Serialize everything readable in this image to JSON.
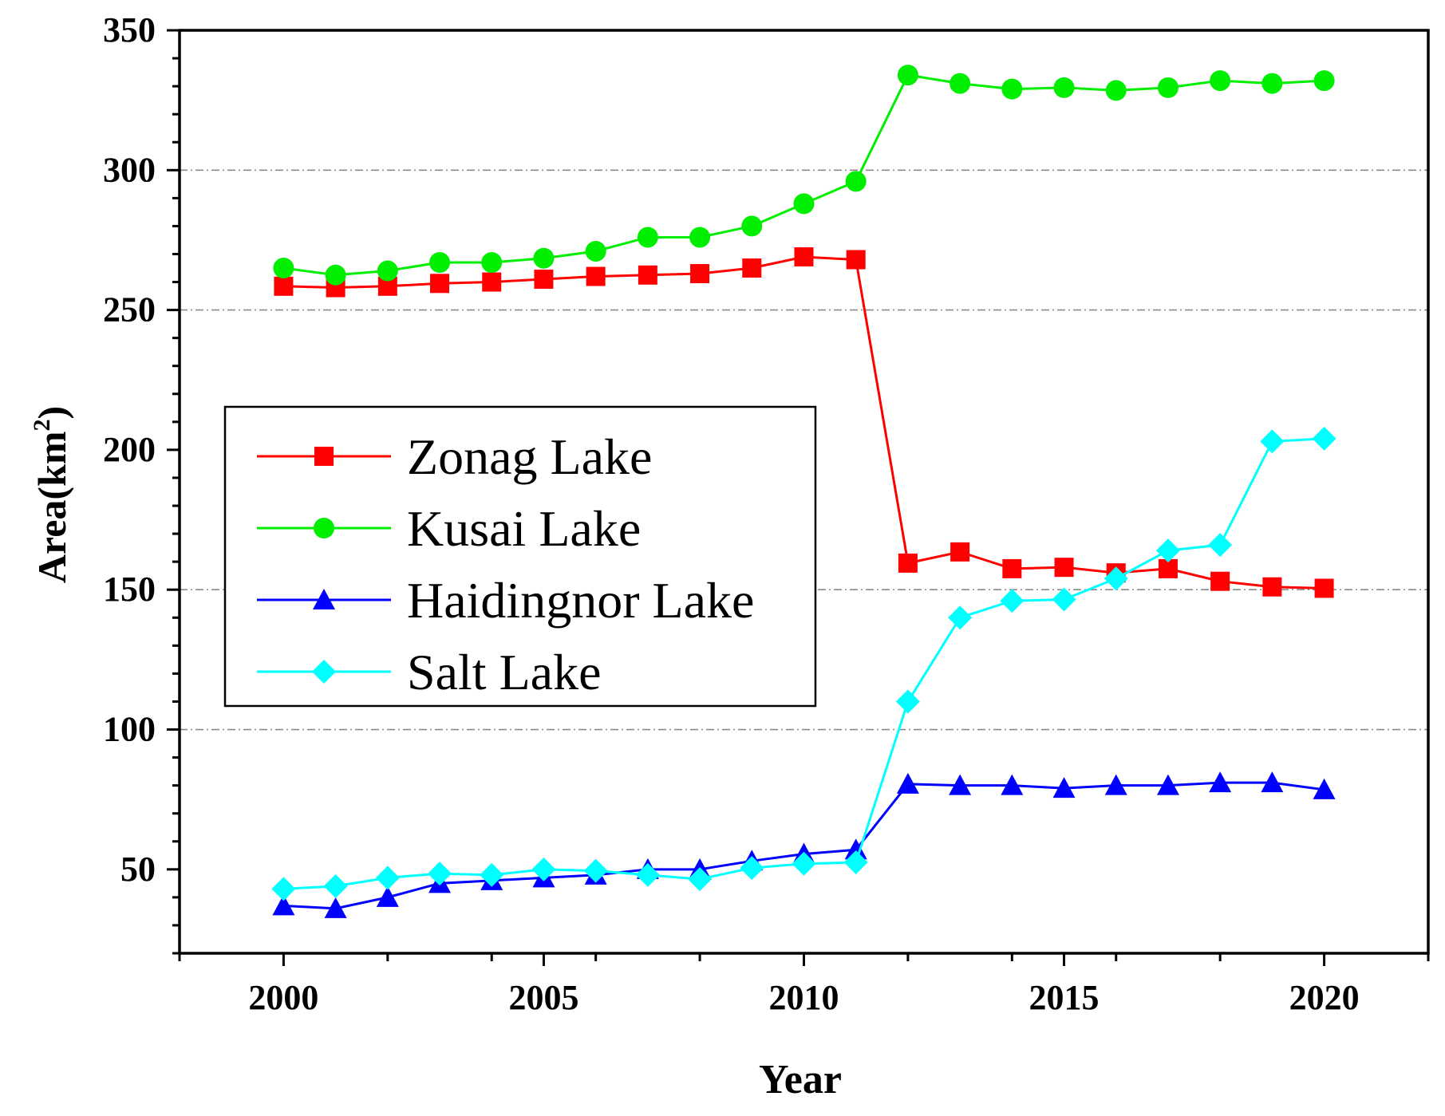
{
  "chart_data": {
    "type": "line",
    "title": "",
    "xlabel": "Year",
    "ylabel": "Area(km",
    "ylabel_superscript": "2",
    "ylabel_close": ")",
    "xlim": [
      1998,
      2022
    ],
    "ylim": [
      20,
      350
    ],
    "x_ticks": [
      2000,
      2005,
      2010,
      2015,
      2020
    ],
    "y_ticks": [
      50,
      100,
      150,
      200,
      250,
      300,
      350
    ],
    "gridlines_y": [
      100,
      150,
      250,
      300
    ],
    "legend_position": "center-left",
    "x": [
      2000,
      2001,
      2002,
      2003,
      2004,
      2005,
      2006,
      2007,
      2008,
      2009,
      2010,
      2011,
      2012,
      2013,
      2014,
      2015,
      2016,
      2017,
      2018,
      2019,
      2020
    ],
    "series": [
      {
        "name": "Zonag Lake",
        "color": "#ff0000",
        "marker": "square",
        "values": [
          258.5,
          258,
          258.5,
          259.5,
          260,
          261,
          262,
          262.5,
          263,
          265,
          269,
          268,
          159.5,
          163.5,
          157.5,
          158,
          156,
          157.5,
          153,
          151,
          150.5
        ]
      },
      {
        "name": "Kusai Lake",
        "color": "#00ee00",
        "marker": "circle",
        "values": [
          265,
          262.5,
          264,
          267,
          267,
          268.5,
          271,
          276,
          276,
          280,
          288,
          296,
          334,
          331,
          329,
          329.5,
          328.5,
          329.5,
          332,
          331,
          332
        ]
      },
      {
        "name": "Haidingnor Lake",
        "color": "#0000ff",
        "marker": "triangle",
        "values": [
          37,
          36,
          40,
          45,
          46,
          47,
          48,
          50,
          50,
          53,
          55.5,
          57,
          80.5,
          80,
          80,
          79,
          80,
          80,
          81,
          81,
          78.5
        ]
      },
      {
        "name": "Salt Lake",
        "color": "#00ffff",
        "marker": "diamond",
        "values": [
          43,
          44,
          47,
          48.5,
          48,
          50,
          49.5,
          48,
          46.5,
          50.5,
          52,
          52.5,
          110,
          140,
          146,
          146.5,
          154,
          164,
          166,
          203,
          204
        ]
      }
    ]
  }
}
